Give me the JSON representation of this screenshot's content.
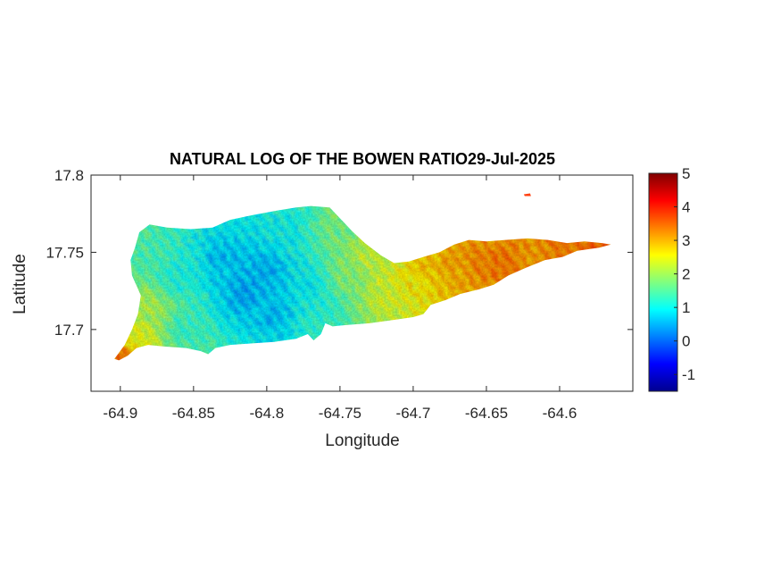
{
  "title": "NATURAL LOG OF THE BOWEN RATIO29-Jul-2025",
  "chart_data": {
    "type": "heatmap",
    "title": "NATURAL LOG OF THE BOWEN RATIO29-Jul-2025",
    "xlabel": "Longitude",
    "ylabel": "Latitude",
    "xlim": [
      -64.92,
      -64.55
    ],
    "ylim": [
      17.66,
      17.8
    ],
    "x_ticks": [
      -64.9,
      -64.85,
      -64.8,
      -64.75,
      -64.7,
      -64.65,
      -64.6
    ],
    "x_tick_labels": [
      "-64.9",
      "-64.85",
      "-64.8",
      "-64.75",
      "-64.7",
      "-64.65",
      "-64.6"
    ],
    "y_ticks": [
      17.7,
      17.75,
      17.8
    ],
    "y_tick_labels": [
      "17.7",
      "17.75",
      "17.8"
    ],
    "colorbar": {
      "colormap": "jet",
      "limits": [
        -1.5,
        5
      ],
      "ticks": [
        -1,
        0,
        1,
        2,
        3,
        4,
        5
      ],
      "tick_labels": [
        "-1",
        "0",
        "1",
        "2",
        "3",
        "4",
        "5"
      ]
    },
    "grid": false,
    "island_outline": [
      [
        -64.901,
        17.68
      ],
      [
        -64.895,
        17.683
      ],
      [
        -64.889,
        17.688
      ],
      [
        -64.881,
        17.69
      ],
      [
        -64.87,
        17.689
      ],
      [
        -64.855,
        17.688
      ],
      [
        -64.845,
        17.686
      ],
      [
        -64.84,
        17.684
      ],
      [
        -64.835,
        17.688
      ],
      [
        -64.825,
        17.69
      ],
      [
        -64.81,
        17.691
      ],
      [
        -64.795,
        17.692
      ],
      [
        -64.78,
        17.694
      ],
      [
        -64.772,
        17.697
      ],
      [
        -64.768,
        17.693
      ],
      [
        -64.763,
        17.697
      ],
      [
        -64.76,
        17.704
      ],
      [
        -64.755,
        17.702
      ],
      [
        -64.745,
        17.703
      ],
      [
        -64.73,
        17.704
      ],
      [
        -64.715,
        17.706
      ],
      [
        -64.7,
        17.708
      ],
      [
        -64.693,
        17.71
      ],
      [
        -64.688,
        17.716
      ],
      [
        -64.678,
        17.719
      ],
      [
        -64.668,
        17.723
      ],
      [
        -64.655,
        17.726
      ],
      [
        -64.645,
        17.729
      ],
      [
        -64.635,
        17.735
      ],
      [
        -64.623,
        17.74
      ],
      [
        -64.61,
        17.745
      ],
      [
        -64.598,
        17.747
      ],
      [
        -64.588,
        17.751
      ],
      [
        -64.573,
        17.753
      ],
      [
        -64.565,
        17.755
      ],
      [
        -64.571,
        17.756
      ],
      [
        -64.583,
        17.757
      ],
      [
        -64.595,
        17.756
      ],
      [
        -64.608,
        17.758
      ],
      [
        -64.622,
        17.759
      ],
      [
        -64.637,
        17.758
      ],
      [
        -64.65,
        17.757
      ],
      [
        -64.662,
        17.758
      ],
      [
        -64.672,
        17.755
      ],
      [
        -64.682,
        17.75
      ],
      [
        -64.693,
        17.747
      ],
      [
        -64.703,
        17.744
      ],
      [
        -64.713,
        17.743
      ],
      [
        -64.722,
        17.748
      ],
      [
        -64.733,
        17.756
      ],
      [
        -64.742,
        17.764
      ],
      [
        -64.75,
        17.772
      ],
      [
        -64.757,
        17.779
      ],
      [
        -64.77,
        17.78
      ],
      [
        -64.78,
        17.779
      ],
      [
        -64.793,
        17.777
      ],
      [
        -64.81,
        17.774
      ],
      [
        -64.825,
        17.771
      ],
      [
        -64.837,
        17.766
      ],
      [
        -64.852,
        17.765
      ],
      [
        -64.868,
        17.766
      ],
      [
        -64.88,
        17.768
      ],
      [
        -64.887,
        17.763
      ],
      [
        -64.89,
        17.753
      ],
      [
        -64.893,
        17.745
      ],
      [
        -64.892,
        17.735
      ],
      [
        -64.886,
        17.722
      ],
      [
        -64.888,
        17.71
      ],
      [
        -64.892,
        17.7
      ],
      [
        -64.897,
        17.69
      ],
      [
        -64.904,
        17.681
      ]
    ],
    "islet": [
      -64.622,
      17.787
    ],
    "value_field": [
      {
        "lon": -64.9,
        "lat": 17.682,
        "value": 3.4,
        "radius": 0.006
      },
      {
        "lon": -64.888,
        "lat": 17.695,
        "value": 2.4,
        "radius": 0.01
      },
      {
        "lon": -64.88,
        "lat": 17.715,
        "value": 2.0,
        "radius": 0.012
      },
      {
        "lon": -64.88,
        "lat": 17.75,
        "value": 1.4,
        "radius": 0.018
      },
      {
        "lon": -64.86,
        "lat": 17.735,
        "value": 1.1,
        "radius": 0.02
      },
      {
        "lon": -64.855,
        "lat": 17.7,
        "value": 1.3,
        "radius": 0.016
      },
      {
        "lon": -64.83,
        "lat": 17.745,
        "value": 0.6,
        "radius": 0.02
      },
      {
        "lon": -64.815,
        "lat": 17.725,
        "value": 0.4,
        "radius": 0.02
      },
      {
        "lon": -64.8,
        "lat": 17.74,
        "value": 0.5,
        "radius": 0.018
      },
      {
        "lon": -64.795,
        "lat": 17.712,
        "value": 0.6,
        "radius": 0.016
      },
      {
        "lon": -64.785,
        "lat": 17.762,
        "value": 1.0,
        "radius": 0.016
      },
      {
        "lon": -64.77,
        "lat": 17.73,
        "value": 0.9,
        "radius": 0.018
      },
      {
        "lon": -64.76,
        "lat": 17.71,
        "value": 1.2,
        "radius": 0.014
      },
      {
        "lon": -64.752,
        "lat": 17.765,
        "value": 1.7,
        "radius": 0.014
      },
      {
        "lon": -64.745,
        "lat": 17.735,
        "value": 1.8,
        "radius": 0.016
      },
      {
        "lon": -64.73,
        "lat": 17.748,
        "value": 2.2,
        "radius": 0.014
      },
      {
        "lon": -64.718,
        "lat": 17.722,
        "value": 2.3,
        "radius": 0.014
      },
      {
        "lon": -64.7,
        "lat": 17.73,
        "value": 2.6,
        "radius": 0.012
      },
      {
        "lon": -64.69,
        "lat": 17.74,
        "value": 2.9,
        "radius": 0.012
      },
      {
        "lon": -64.672,
        "lat": 17.74,
        "value": 3.1,
        "radius": 0.014
      },
      {
        "lon": -64.655,
        "lat": 17.745,
        "value": 3.3,
        "radius": 0.016
      },
      {
        "lon": -64.64,
        "lat": 17.742,
        "value": 3.4,
        "radius": 0.016
      },
      {
        "lon": -64.62,
        "lat": 17.75,
        "value": 3.2,
        "radius": 0.014
      },
      {
        "lon": -64.595,
        "lat": 17.752,
        "value": 3.4,
        "radius": 0.012
      },
      {
        "lon": -64.575,
        "lat": 17.754,
        "value": 3.5,
        "radius": 0.008
      }
    ]
  }
}
